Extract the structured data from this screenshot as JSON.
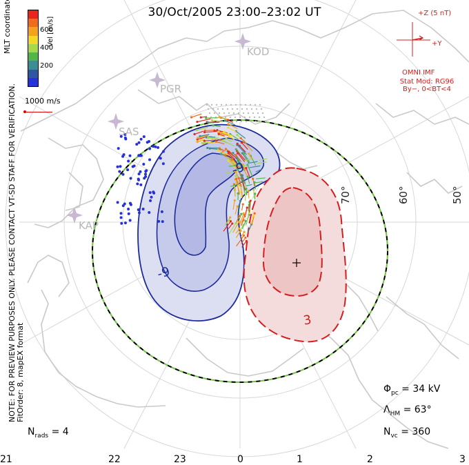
{
  "title": "30/Oct/2005 23:00–23:02 UT",
  "colorbar": {
    "label": "Vel [m/s]",
    "ticks": [
      "600",
      "400",
      "200"
    ],
    "colors": [
      "#e8261c",
      "#f06b1c",
      "#f4a21e",
      "#f5d72a",
      "#a6d84b",
      "#52b548",
      "#3d8d95",
      "#2f56a3",
      "#2432d8"
    ]
  },
  "coord_label": "MLT coordinates",
  "scale": {
    "label": "1000 m/s"
  },
  "note": {
    "line1": "NOTE: FOR PREVIEW PURPOSES ONLY. PLEASE CONTACT VT-SD STAFF FOR VERIFICATION.",
    "line2": "FitOrder: 8, mapEX format"
  },
  "imf": {
    "z_label": "+Z (5 nT)",
    "y_label": "+Y",
    "source": "OMNI IMF",
    "stat_line1": "Stat Mod: RG96",
    "stat_line2": "By−, 0<BT<4",
    "by_nT": -3.4,
    "bz_nT": -0.5
  },
  "stations": [
    "KOD",
    "PGR",
    "SAS",
    "KAP"
  ],
  "latitude_labels": [
    "70°",
    "60°",
    "50°"
  ],
  "contour_labels": [
    "-9",
    "-9",
    "3"
  ],
  "mlt_axis": [
    "21",
    "22",
    "23",
    "0",
    "1",
    "2",
    "3"
  ],
  "stats": {
    "phi_pc": "Φ",
    "phi_pc_sub": "pc",
    "phi_pc_value": "= 34 kV",
    "lambda_hm": "Λ",
    "lambda_hm_sub": "HM",
    "lambda_hm_value": "= 63°",
    "n_vc": "N",
    "n_vc_sub": "vc",
    "n_vc_value": "= 360",
    "n_rads": "N",
    "n_rads_sub": "rads",
    "n_rads_value": "= 4"
  },
  "colors": {
    "coast": "#c9c9c9",
    "grid": "#d7d7d7",
    "negative_contour": "#1c2a9c",
    "negative_fill": "#dcdff2",
    "negative_core": "#b3b8e4",
    "positive_contour": "#d61c1c",
    "positive_fill": "#f4dcdc",
    "positive_core": "#edc5c5",
    "boundary_a": "#000000",
    "boundary_b": "#6fc43f",
    "imf_red": "#d61c1c"
  }
}
